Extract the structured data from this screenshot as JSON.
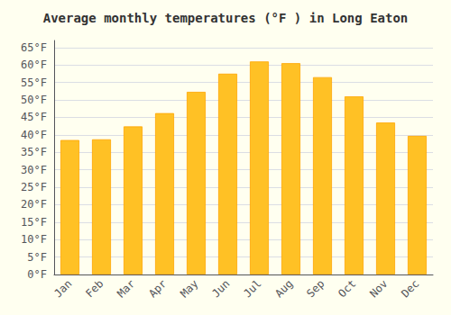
{
  "chart_data": {
    "type": "bar",
    "title": "Average monthly temperatures (°F ) in Long Eaton",
    "categories": [
      "Jan",
      "Feb",
      "Mar",
      "Apr",
      "May",
      "Jun",
      "Jul",
      "Aug",
      "Sep",
      "Oct",
      "Nov",
      "Dec"
    ],
    "values": [
      38.5,
      38.7,
      42.4,
      46.2,
      52.3,
      57.5,
      61.0,
      60.5,
      56.5,
      51.0,
      43.5,
      39.7
    ],
    "color": "#FFC125",
    "ylim": [
      0,
      67
    ],
    "yticks": [
      {
        "value": 0,
        "label": "0°F"
      },
      {
        "value": 5,
        "label": "5°F"
      },
      {
        "value": 10,
        "label": "10°F"
      },
      {
        "value": 15,
        "label": "15°F"
      },
      {
        "value": 20,
        "label": "20°F"
      },
      {
        "value": 25,
        "label": "25°F"
      },
      {
        "value": 30,
        "label": "30°F"
      },
      {
        "value": 35,
        "label": "35°F"
      },
      {
        "value": 40,
        "label": "40°F"
      },
      {
        "value": 45,
        "label": "45°F"
      },
      {
        "value": 50,
        "label": "50°F"
      },
      {
        "value": 55,
        "label": "55°F"
      },
      {
        "value": 60,
        "label": "60°F"
      },
      {
        "value": 65,
        "label": "65°F"
      }
    ],
    "grid": true
  }
}
